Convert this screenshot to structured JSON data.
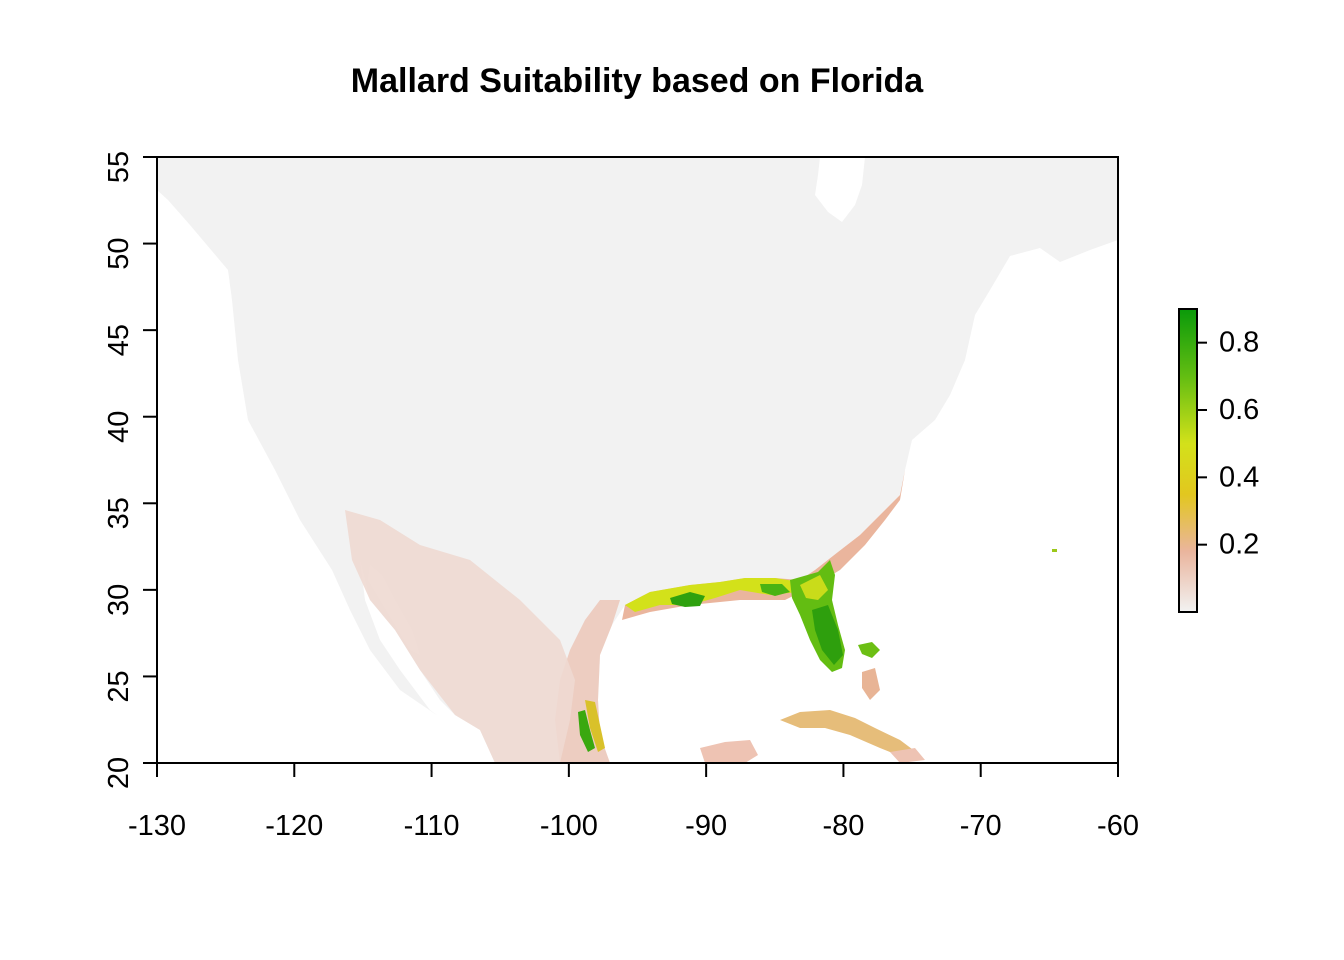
{
  "map": {
    "title": "Mallard Suitability based on Florida",
    "x_axis": {
      "min": -130,
      "max": -60,
      "ticks": [
        -130,
        -120,
        -110,
        -100,
        -90,
        -80,
        -70,
        -60
      ]
    },
    "y_axis": {
      "min": 20,
      "max": 55,
      "ticks": [
        20,
        25,
        30,
        35,
        40,
        45,
        50,
        55
      ]
    },
    "land_color": "#f2f2f2",
    "water_color": "#ffffff"
  },
  "legend": {
    "min": 0,
    "max": 0.9,
    "labels": [
      "0.8",
      "0.6",
      "0.4",
      "0.2"
    ],
    "label_values": [
      0.8,
      0.6,
      0.4,
      0.2
    ],
    "color_stops": [
      {
        "value": 0.0,
        "color": "#f2f2f2"
      },
      {
        "value": 0.18,
        "color": "#eab59d"
      },
      {
        "value": 0.35,
        "color": "#e2c71f"
      },
      {
        "value": 0.5,
        "color": "#d3e11a"
      },
      {
        "value": 0.7,
        "color": "#63bd12"
      },
      {
        "value": 0.9,
        "color": "#0a9a0a"
      }
    ]
  }
}
